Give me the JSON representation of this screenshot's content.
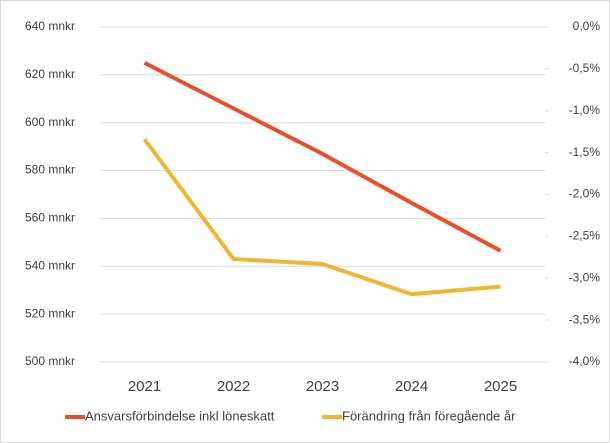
{
  "chart_data": {
    "type": "line",
    "categories": [
      "2021",
      "2022",
      "2023",
      "2024",
      "2025"
    ],
    "series": [
      {
        "name": "Ansvarsförbindelse inkl löneskatt",
        "color": "#e8502a",
        "values": [
          625,
          606,
          587,
          566.5,
          546.5
        ]
      },
      {
        "name": "Förändring från föregående år",
        "color": "#f2b530",
        "axis": "y2",
        "values": [
          -1.34,
          -2.77,
          -2.83,
          -3.19,
          -3.1
        ]
      }
    ],
    "ylim": [
      500,
      640
    ],
    "yticks": [
      {
        "value": 500,
        "label": "500 mnkr"
      },
      {
        "value": 520,
        "label": "520 mnkr"
      },
      {
        "value": 540,
        "label": "540 mnkr"
      },
      {
        "value": 560,
        "label": "560 mnkr"
      },
      {
        "value": 580,
        "label": "580 mnkr"
      },
      {
        "value": 600,
        "label": "600 mnkr"
      },
      {
        "value": 620,
        "label": "620 mnkr"
      },
      {
        "value": 640,
        "label": "640 mnkr"
      }
    ],
    "y2lim": [
      -4,
      0
    ],
    "y2ticks": [
      {
        "value": -4,
        "label": "-4,0%"
      },
      {
        "value": -3.5,
        "label": "-3,5%"
      },
      {
        "value": -3,
        "label": "-3,0%"
      },
      {
        "value": -2.5,
        "label": "-2,5%"
      },
      {
        "value": -2,
        "label": "-2,0%"
      },
      {
        "value": -1.5,
        "label": "-1,5%"
      },
      {
        "value": -1,
        "label": "-1,0%"
      },
      {
        "value": -0.5,
        "label": "-0,5%"
      },
      {
        "value": 0,
        "label": "0,0%"
      }
    ],
    "grid": true,
    "legend": "bottom"
  }
}
